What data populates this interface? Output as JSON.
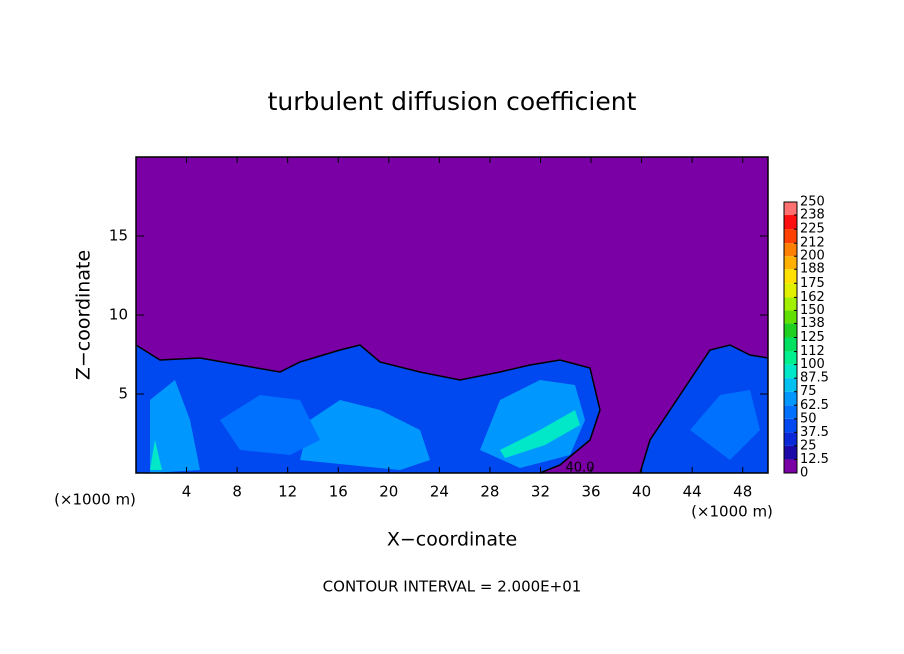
{
  "chart_data": {
    "type": "contour",
    "title": "turbulent diffusion coefficient",
    "x_label": "X−coordinate",
    "y_label": "Z−coordinate",
    "x_unit_left": "(×1000 m)",
    "x_unit_right": "(×1000 m)",
    "footer": "CONTOUR INTERVAL = 2.000E+01",
    "contour_label": "40.0",
    "xlim": [
      0,
      50
    ],
    "xticks": [
      4,
      8,
      12,
      16,
      20,
      24,
      28,
      32,
      36,
      40,
      44,
      48
    ],
    "ylim": [
      0,
      20
    ],
    "yticks": [
      5,
      10,
      15
    ],
    "colorbar": {
      "levels": [
        0,
        12.5,
        25,
        37.5,
        50,
        62.5,
        75,
        87.5,
        100,
        112,
        125,
        138,
        150,
        162,
        175,
        188,
        200,
        212,
        225,
        238,
        250
      ],
      "colors": [
        "#7a00a6",
        "#1c0aa8",
        "#0a28d8",
        "#0048f0",
        "#0070ff",
        "#0098ff",
        "#00c0f0",
        "#00e8c8",
        "#00f090",
        "#00e060",
        "#20d020",
        "#60e000",
        "#a0f000",
        "#e0f000",
        "#ffe000",
        "#ffb000",
        "#ff8000",
        "#ff4000",
        "#ff1010",
        "#ff7070"
      ]
    }
  }
}
